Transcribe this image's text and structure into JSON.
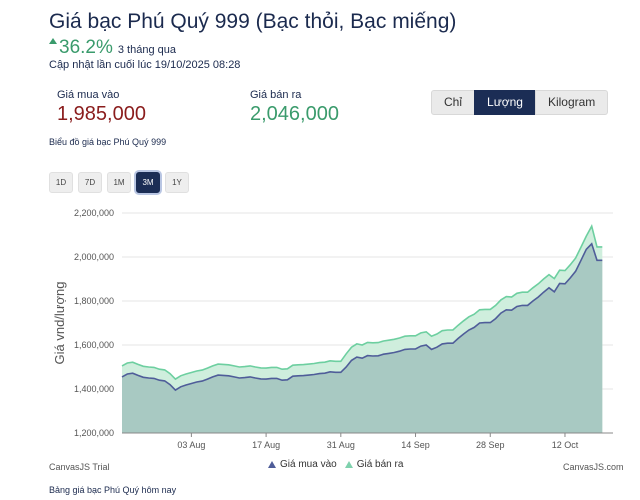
{
  "header": {
    "title": "Giá bạc Phú Quý 999 (Bạc thỏi, Bạc miếng)",
    "change_pct": "36.2%",
    "change_period": "3 tháng qua",
    "updated": "Cập nhật lần cuối lúc 19/10/2025 08:28"
  },
  "prices": {
    "buy_label": "Giá mua vào",
    "buy_value": "1,985,000",
    "sell_label": "Giá bán ra",
    "sell_value": "2,046,000"
  },
  "unit_toggle": {
    "options": [
      "Chỉ",
      "Lượng",
      "Kilogram"
    ],
    "selected": "Lượng"
  },
  "chart_caption": "Biểu đồ giá bạc Phú Quý 999",
  "range_buttons": {
    "options": [
      "1D",
      "7D",
      "1M",
      "3M",
      "1Y"
    ],
    "selected": "3M"
  },
  "chart_credits": {
    "trial": "CanvasJS Trial",
    "site": "CanvasJS.com"
  },
  "footer": "Bảng giá bạc Phú Quý hôm nay",
  "colors": {
    "buy_line": "#4f5d99",
    "buy_fill": "#a8c9c2",
    "sell_line": "#6dcfa0",
    "sell_fill": "#cfeedd",
    "up": "#3a9b6c"
  },
  "chart_data": {
    "type": "area",
    "ylabel": "Giá vnd/lượng",
    "ylim": [
      1200000,
      2200000
    ],
    "y_ticks": [
      "1,200,000",
      "1,400,000",
      "1,600,000",
      "1,800,000",
      "2,000,000",
      "2,200,000"
    ],
    "x_ticks": [
      "03 Aug",
      "17 Aug",
      "31 Aug",
      "14 Sep",
      "28 Sep",
      "12 Oct"
    ],
    "grid": true,
    "legend": "bottom",
    "series": [
      {
        "name": "Giá mua vào",
        "points": [
          [
            "2025-07-21",
            1455000
          ],
          [
            "2025-07-22",
            1468000
          ],
          [
            "2025-07-23",
            1472000
          ],
          [
            "2025-07-24",
            1462000
          ],
          [
            "2025-07-25",
            1453000
          ],
          [
            "2025-07-26",
            1450000
          ],
          [
            "2025-07-27",
            1448000
          ],
          [
            "2025-07-28",
            1440000
          ],
          [
            "2025-07-29",
            1437000
          ],
          [
            "2025-07-30",
            1420000
          ],
          [
            "2025-07-31",
            1395000
          ],
          [
            "2025-08-01",
            1410000
          ],
          [
            "2025-08-02",
            1418000
          ],
          [
            "2025-08-03",
            1425000
          ],
          [
            "2025-08-04",
            1432000
          ],
          [
            "2025-08-05",
            1436000
          ],
          [
            "2025-08-06",
            1445000
          ],
          [
            "2025-08-07",
            1455000
          ],
          [
            "2025-08-08",
            1463000
          ],
          [
            "2025-08-09",
            1462000
          ],
          [
            "2025-08-10",
            1460000
          ],
          [
            "2025-08-11",
            1455000
          ],
          [
            "2025-08-12",
            1450000
          ],
          [
            "2025-08-13",
            1452000
          ],
          [
            "2025-08-14",
            1455000
          ],
          [
            "2025-08-15",
            1450000
          ],
          [
            "2025-08-16",
            1446000
          ],
          [
            "2025-08-17",
            1445000
          ],
          [
            "2025-08-18",
            1448000
          ],
          [
            "2025-08-19",
            1448000
          ],
          [
            "2025-08-20",
            1440000
          ],
          [
            "2025-08-21",
            1442000
          ],
          [
            "2025-08-22",
            1458000
          ],
          [
            "2025-08-23",
            1460000
          ],
          [
            "2025-08-24",
            1461000
          ],
          [
            "2025-08-25",
            1463000
          ],
          [
            "2025-08-26",
            1466000
          ],
          [
            "2025-08-27",
            1470000
          ],
          [
            "2025-08-28",
            1472000
          ],
          [
            "2025-08-29",
            1478000
          ],
          [
            "2025-08-30",
            1476000
          ],
          [
            "2025-08-31",
            1476000
          ],
          [
            "2025-09-01",
            1500000
          ],
          [
            "2025-09-02",
            1530000
          ],
          [
            "2025-09-03",
            1545000
          ],
          [
            "2025-09-04",
            1540000
          ],
          [
            "2025-09-05",
            1552000
          ],
          [
            "2025-09-06",
            1550000
          ],
          [
            "2025-09-07",
            1551000
          ],
          [
            "2025-09-08",
            1558000
          ],
          [
            "2025-09-09",
            1562000
          ],
          [
            "2025-09-10",
            1566000
          ],
          [
            "2025-09-11",
            1572000
          ],
          [
            "2025-09-12",
            1580000
          ],
          [
            "2025-09-13",
            1582000
          ],
          [
            "2025-09-14",
            1582000
          ],
          [
            "2025-09-15",
            1595000
          ],
          [
            "2025-09-16",
            1600000
          ],
          [
            "2025-09-17",
            1580000
          ],
          [
            "2025-09-18",
            1590000
          ],
          [
            "2025-09-19",
            1605000
          ],
          [
            "2025-09-20",
            1608000
          ],
          [
            "2025-09-21",
            1608000
          ],
          [
            "2025-09-22",
            1630000
          ],
          [
            "2025-09-23",
            1650000
          ],
          [
            "2025-09-24",
            1668000
          ],
          [
            "2025-09-25",
            1680000
          ],
          [
            "2025-09-26",
            1700000
          ],
          [
            "2025-09-27",
            1702000
          ],
          [
            "2025-09-28",
            1702000
          ],
          [
            "2025-09-29",
            1720000
          ],
          [
            "2025-09-30",
            1745000
          ],
          [
            "2025-10-01",
            1760000
          ],
          [
            "2025-10-02",
            1758000
          ],
          [
            "2025-10-03",
            1775000
          ],
          [
            "2025-10-04",
            1780000
          ],
          [
            "2025-10-05",
            1780000
          ],
          [
            "2025-10-06",
            1800000
          ],
          [
            "2025-10-07",
            1818000
          ],
          [
            "2025-10-08",
            1840000
          ],
          [
            "2025-10-09",
            1860000
          ],
          [
            "2025-10-10",
            1842000
          ],
          [
            "2025-10-11",
            1880000
          ],
          [
            "2025-10-12",
            1878000
          ],
          [
            "2025-10-13",
            1905000
          ],
          [
            "2025-10-14",
            1935000
          ],
          [
            "2025-10-15",
            1985000
          ],
          [
            "2025-10-16",
            2035000
          ],
          [
            "2025-10-17",
            2060000
          ],
          [
            "2025-10-18",
            1985000
          ],
          [
            "2025-10-19",
            1985000
          ]
        ]
      },
      {
        "name": "Giá bán ra",
        "points": [
          [
            "2025-07-21",
            1505000
          ],
          [
            "2025-07-22",
            1518000
          ],
          [
            "2025-07-23",
            1522000
          ],
          [
            "2025-07-24",
            1512000
          ],
          [
            "2025-07-25",
            1503000
          ],
          [
            "2025-07-26",
            1500000
          ],
          [
            "2025-07-27",
            1498000
          ],
          [
            "2025-07-28",
            1490000
          ],
          [
            "2025-07-29",
            1487000
          ],
          [
            "2025-07-30",
            1470000
          ],
          [
            "2025-07-31",
            1445000
          ],
          [
            "2025-08-01",
            1460000
          ],
          [
            "2025-08-02",
            1468000
          ],
          [
            "2025-08-03",
            1475000
          ],
          [
            "2025-08-04",
            1482000
          ],
          [
            "2025-08-05",
            1486000
          ],
          [
            "2025-08-06",
            1495000
          ],
          [
            "2025-08-07",
            1505000
          ],
          [
            "2025-08-08",
            1513000
          ],
          [
            "2025-08-09",
            1512000
          ],
          [
            "2025-08-10",
            1510000
          ],
          [
            "2025-08-11",
            1505000
          ],
          [
            "2025-08-12",
            1500000
          ],
          [
            "2025-08-13",
            1502000
          ],
          [
            "2025-08-14",
            1505000
          ],
          [
            "2025-08-15",
            1500000
          ],
          [
            "2025-08-16",
            1496000
          ],
          [
            "2025-08-17",
            1495000
          ],
          [
            "2025-08-18",
            1498000
          ],
          [
            "2025-08-19",
            1498000
          ],
          [
            "2025-08-20",
            1490000
          ],
          [
            "2025-08-21",
            1492000
          ],
          [
            "2025-08-22",
            1508000
          ],
          [
            "2025-08-23",
            1510000
          ],
          [
            "2025-08-24",
            1511000
          ],
          [
            "2025-08-25",
            1513000
          ],
          [
            "2025-08-26",
            1516000
          ],
          [
            "2025-08-27",
            1520000
          ],
          [
            "2025-08-28",
            1522000
          ],
          [
            "2025-08-29",
            1528000
          ],
          [
            "2025-08-30",
            1526000
          ],
          [
            "2025-08-31",
            1526000
          ],
          [
            "2025-09-01",
            1560000
          ],
          [
            "2025-09-02",
            1590000
          ],
          [
            "2025-09-03",
            1605000
          ],
          [
            "2025-09-04",
            1600000
          ],
          [
            "2025-09-05",
            1612000
          ],
          [
            "2025-09-06",
            1610000
          ],
          [
            "2025-09-07",
            1611000
          ],
          [
            "2025-09-08",
            1618000
          ],
          [
            "2025-09-09",
            1622000
          ],
          [
            "2025-09-10",
            1626000
          ],
          [
            "2025-09-11",
            1632000
          ],
          [
            "2025-09-12",
            1640000
          ],
          [
            "2025-09-13",
            1642000
          ],
          [
            "2025-09-14",
            1642000
          ],
          [
            "2025-09-15",
            1655000
          ],
          [
            "2025-09-16",
            1660000
          ],
          [
            "2025-09-17",
            1640000
          ],
          [
            "2025-09-18",
            1650000
          ],
          [
            "2025-09-19",
            1665000
          ],
          [
            "2025-09-20",
            1668000
          ],
          [
            "2025-09-21",
            1668000
          ],
          [
            "2025-09-22",
            1690000
          ],
          [
            "2025-09-23",
            1710000
          ],
          [
            "2025-09-24",
            1728000
          ],
          [
            "2025-09-25",
            1740000
          ],
          [
            "2025-09-26",
            1760000
          ],
          [
            "2025-09-27",
            1762000
          ],
          [
            "2025-09-28",
            1762000
          ],
          [
            "2025-09-29",
            1780000
          ],
          [
            "2025-09-30",
            1805000
          ],
          [
            "2025-10-01",
            1820000
          ],
          [
            "2025-10-02",
            1818000
          ],
          [
            "2025-10-03",
            1835000
          ],
          [
            "2025-10-04",
            1840000
          ],
          [
            "2025-10-05",
            1840000
          ],
          [
            "2025-10-06",
            1860000
          ],
          [
            "2025-10-07",
            1878000
          ],
          [
            "2025-10-08",
            1900000
          ],
          [
            "2025-10-09",
            1920000
          ],
          [
            "2025-10-10",
            1902000
          ],
          [
            "2025-10-11",
            1940000
          ],
          [
            "2025-10-12",
            1938000
          ],
          [
            "2025-10-13",
            1965000
          ],
          [
            "2025-10-14",
            1995000
          ],
          [
            "2025-10-15",
            2045000
          ],
          [
            "2025-10-16",
            2095000
          ],
          [
            "2025-10-17",
            2140000
          ],
          [
            "2025-10-18",
            2046000
          ],
          [
            "2025-10-19",
            2046000
          ]
        ]
      }
    ]
  }
}
